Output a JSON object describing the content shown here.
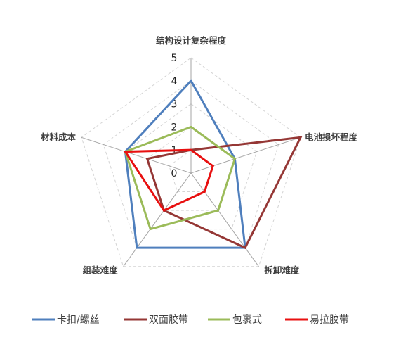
{
  "chart_data": {
    "type": "radar",
    "title": "",
    "axes": [
      "结构设计复杂程度",
      "电池损坏程度",
      "拆卸难度",
      "组装难度",
      "材料成本"
    ],
    "range": [
      0,
      5
    ],
    "ticks": [
      "0",
      "1",
      "2",
      "3",
      "4",
      "5"
    ],
    "grid": true,
    "legend_position": "bottom",
    "series": [
      {
        "name": "卡扣/螺丝",
        "color": "#4f7fbd",
        "values": [
          4,
          2,
          4,
          4,
          3
        ]
      },
      {
        "name": "双面胶带",
        "color": "#953735",
        "values": [
          1,
          5,
          4,
          2,
          2
        ]
      },
      {
        "name": "包裹式",
        "color": "#9bbb59",
        "values": [
          2,
          2,
          2,
          3,
          3
        ]
      },
      {
        "name": "易拉胶带",
        "color": "#e81010",
        "values": [
          1,
          1,
          1,
          2,
          3
        ]
      }
    ]
  }
}
